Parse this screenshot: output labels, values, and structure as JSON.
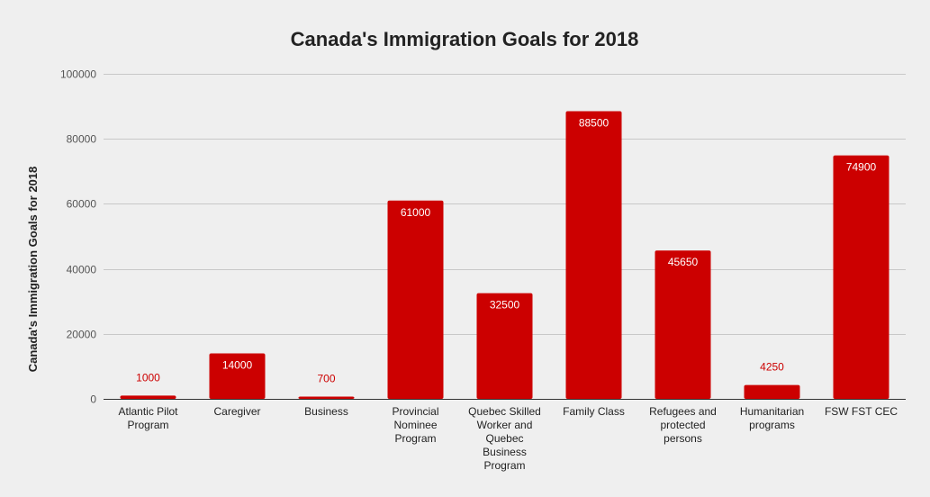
{
  "chart_data": {
    "type": "bar",
    "title": "Canada's Immigration Goals for 2018",
    "ylabel": "Canada's Immigration Goals for 2018",
    "xlabel": "",
    "ylim": [
      0,
      100000
    ],
    "yticks": [
      0,
      20000,
      40000,
      60000,
      80000,
      100000
    ],
    "grid": true,
    "bar_color": "#cc0000",
    "categories": [
      "Atlantic Pilot Program",
      "Caregiver",
      "Business",
      "Provincial Nominee Program",
      "Quebec Skilled Worker and Quebec Business Program",
      "Family Class",
      "Refugees and protected persons",
      "Humanitarian programs",
      "FSW FST CEC"
    ],
    "category_lines": [
      [
        "Atlantic Pilot",
        "Program"
      ],
      [
        "Caregiver"
      ],
      [
        "Business"
      ],
      [
        "Provincial",
        "Nominee",
        "Program"
      ],
      [
        "Quebec Skilled",
        "Worker and",
        "Quebec",
        "Business",
        "Program"
      ],
      [
        "Family Class"
      ],
      [
        "Refugees and",
        "protected",
        "persons"
      ],
      [
        "Humanitarian",
        "programs"
      ],
      [
        "FSW FST CEC"
      ]
    ],
    "values": [
      1000,
      14000,
      700,
      61000,
      32500,
      88500,
      45650,
      4250,
      74900
    ]
  }
}
